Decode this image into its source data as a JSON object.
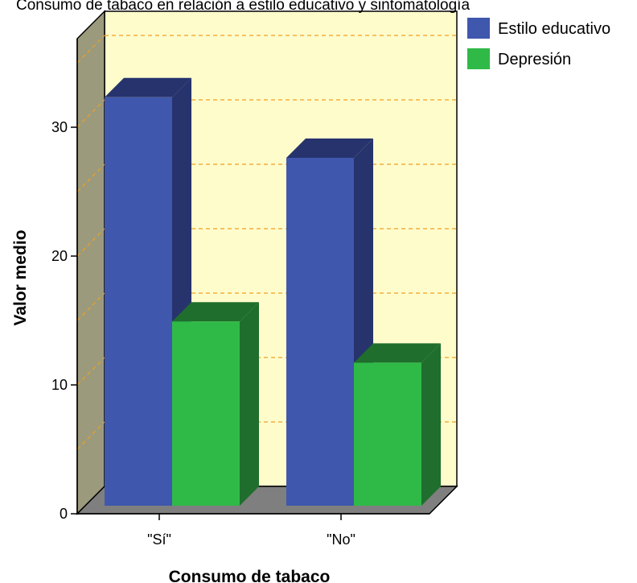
{
  "chart_data": {
    "type": "bar",
    "title": "Consumo de tabaco en relación a estilo educativo y sintomatología",
    "xlabel": "Consumo de tabaco",
    "ylabel": "Valor medio",
    "categories": [
      "\"Sí\"",
      "\"No\""
    ],
    "series": [
      {
        "name": "Estilo educativo",
        "values": [
          31.7,
          27.0
        ]
      },
      {
        "name": "Depresión",
        "values": [
          14.3,
          11.1
        ]
      }
    ],
    "yticks": [
      0,
      10,
      20,
      30
    ],
    "ylim": [
      0,
      37.5
    ],
    "grid": true,
    "legend": "top-right",
    "colors": {
      "series_front": [
        "#3f57ad",
        "#2fba47"
      ],
      "series_top": [
        "#27336d",
        "#1f6e2d"
      ],
      "series_side": [
        "#27336d",
        "#1f6e2d"
      ],
      "back_wall": "#fffccc",
      "left_wall": "#9c9a7c",
      "floor": "#7f7f7f",
      "gridline": "#f0a020"
    }
  }
}
